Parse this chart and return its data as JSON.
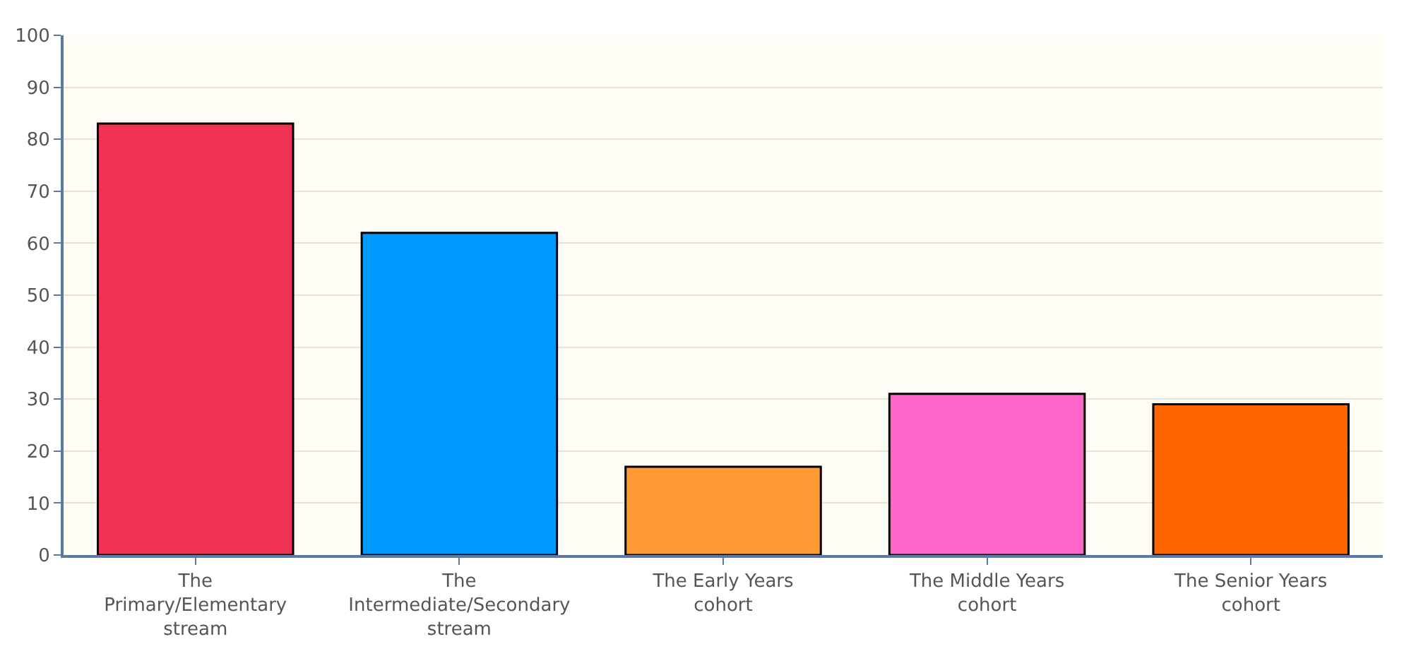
{
  "chart_data": {
    "type": "bar",
    "categories": [
      "The Primary/Elementary stream",
      "The Intermediate/Secondary stream",
      "The Early Years cohort",
      "The Middle Years cohort",
      "The Senior Years cohort"
    ],
    "values": [
      83,
      62,
      17,
      31,
      29
    ],
    "colors": [
      "#f03355",
      "#0099ff",
      "#ff9933",
      "#ff66cc",
      "#ff6600"
    ],
    "ylim": [
      0,
      100
    ],
    "yticks": [
      0,
      10,
      20,
      30,
      40,
      50,
      60,
      70,
      80,
      90,
      100
    ],
    "grid": "y"
  }
}
